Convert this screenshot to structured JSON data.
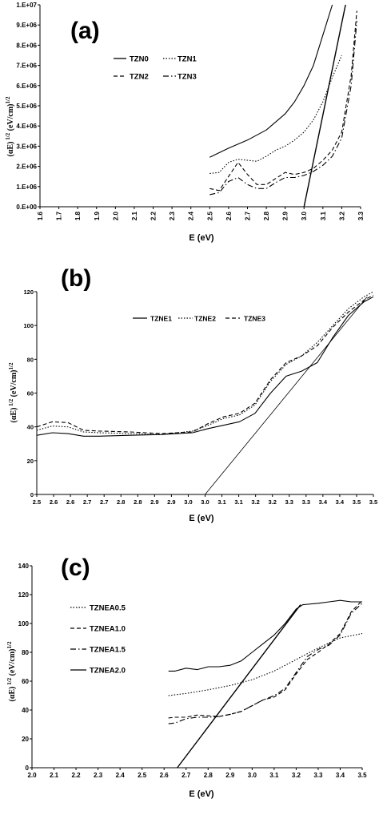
{
  "chart_data": [
    {
      "panel_label": "(a)",
      "type": "line",
      "xlabel": "E (eV)",
      "ylabel_main": "(αE)",
      "ylabel_sup": "1/2",
      "ylabel_unit": "(eV/cm)",
      "ylabel_unit_sup": "1/2",
      "xlim": [
        1.6,
        3.3
      ],
      "ylim": [
        0,
        10000000
      ],
      "x_ticks": [
        "1.6",
        "1.7",
        "1.8",
        "1.9",
        "2.0",
        "2.1",
        "2.2",
        "2.3",
        "2.4",
        "2.5",
        "2.6",
        "2.7",
        "2.8",
        "2.9",
        "3.0",
        "3.1",
        "3.2",
        "3.3"
      ],
      "y_ticks": [
        "0.E+00",
        "1.E+06",
        "2.E+06",
        "3.E+06",
        "4.E+06",
        "5.E+06",
        "6.E+06",
        "7.E+06",
        "8.E+06",
        "9.E+06",
        "1.E+07"
      ],
      "legend_position": "top-left",
      "series": [
        {
          "name": "TZN0",
          "style": "solid",
          "x": [
            2.5,
            2.6,
            2.7,
            2.8,
            2.9,
            2.95,
            3.0,
            3.05,
            3.1,
            3.15
          ],
          "y": [
            2450000,
            2900000,
            3300000,
            3800000,
            4600000,
            5200000,
            6000000,
            7000000,
            8500000,
            10000000
          ]
        },
        {
          "name": "TZN1",
          "style": "dotted",
          "x": [
            2.5,
            2.55,
            2.6,
            2.65,
            2.7,
            2.75,
            2.8,
            2.85,
            2.9,
            2.95,
            3.0,
            3.05,
            3.1,
            3.15,
            3.2
          ],
          "y": [
            1650000,
            1700000,
            2200000,
            2350000,
            2300000,
            2250000,
            2500000,
            2800000,
            3000000,
            3300000,
            3700000,
            4300000,
            5200000,
            6400000,
            7500000
          ]
        },
        {
          "name": "TZN2",
          "style": "dashed",
          "x": [
            2.5,
            2.55,
            2.6,
            2.65,
            2.7,
            2.75,
            2.8,
            2.85,
            2.9,
            2.95,
            3.0,
            3.05,
            3.1,
            3.15,
            3.2,
            3.25,
            3.28
          ],
          "y": [
            900000,
            800000,
            1500000,
            2200000,
            1600000,
            1100000,
            1100000,
            1400000,
            1700000,
            1600000,
            1700000,
            1900000,
            2300000,
            2800000,
            3700000,
            6500000,
            9700000
          ]
        },
        {
          "name": "TZN3",
          "style": "dashdot",
          "x": [
            2.5,
            2.55,
            2.6,
            2.65,
            2.7,
            2.75,
            2.8,
            2.85,
            2.9,
            2.95,
            3.0,
            3.05,
            3.1,
            3.15,
            3.2,
            3.25,
            3.28
          ],
          "y": [
            600000,
            700000,
            1250000,
            1450000,
            1100000,
            900000,
            900000,
            1200000,
            1450000,
            1450000,
            1550000,
            1750000,
            2050000,
            2500000,
            3400000,
            6000000,
            9200000
          ]
        }
      ],
      "fit_line": {
        "x": [
          3.0,
          3.22
        ],
        "y": [
          0,
          10000000
        ]
      }
    },
    {
      "panel_label": "(b)",
      "type": "line",
      "xlabel": "E (eV)",
      "ylabel_main": "(αE)",
      "ylabel_sup": "1/2",
      "ylabel_unit": "(eV/cm)",
      "ylabel_unit_sup": "1/2",
      "xlim": [
        2.5,
        3.58
      ],
      "ylim": [
        0,
        120
      ],
      "x_ticks": [
        "2.5",
        "2.6",
        "2.6",
        "2.7",
        "2.7",
        "2.8",
        "2.8",
        "2.9",
        "2.9",
        "3.0",
        "3.0",
        "3.1",
        "3.1",
        "3.2",
        "3.2",
        "3.3",
        "3.3",
        "3.4",
        "3.4",
        "3.5",
        "3.5"
      ],
      "y_ticks": [
        "0",
        "20",
        "40",
        "60",
        "80",
        "100",
        "120"
      ],
      "legend_position": "top-right",
      "series": [
        {
          "name": "TZNE1",
          "style": "solid",
          "x": [
            2.5,
            2.55,
            2.6,
            2.65,
            2.7,
            2.8,
            2.9,
            3.0,
            3.05,
            3.1,
            3.15,
            3.2,
            3.25,
            3.3,
            3.35,
            3.4,
            3.45,
            3.5,
            3.55,
            3.58
          ],
          "y": [
            35,
            36.5,
            36,
            34.5,
            34.5,
            35,
            35.5,
            36.5,
            39,
            41,
            43,
            48,
            60,
            70,
            73,
            78,
            93,
            106,
            114,
            117
          ]
        },
        {
          "name": "TZNE2",
          "style": "dotted",
          "x": [
            2.5,
            2.55,
            2.6,
            2.65,
            2.7,
            2.8,
            2.9,
            3.0,
            3.05,
            3.1,
            3.15,
            3.2,
            3.25,
            3.3,
            3.35,
            3.4,
            3.45,
            3.5,
            3.55,
            3.58
          ],
          "y": [
            38,
            40.5,
            40,
            37,
            36.5,
            36,
            35.5,
            37.5,
            41,
            45,
            47,
            53,
            67,
            77,
            82,
            90,
            100,
            110,
            117,
            120
          ]
        },
        {
          "name": "TZNE3",
          "style": "dashed",
          "x": [
            2.5,
            2.55,
            2.6,
            2.65,
            2.7,
            2.8,
            2.9,
            3.0,
            3.05,
            3.1,
            3.15,
            3.2,
            3.25,
            3.3,
            3.35,
            3.4,
            3.45,
            3.5,
            3.55,
            3.58
          ],
          "y": [
            40,
            43,
            42.5,
            38,
            37.5,
            37,
            36,
            37,
            42,
            46,
            48,
            54,
            68,
            78,
            82,
            88,
            99,
            108,
            115,
            118
          ]
        }
      ],
      "fit_line": {
        "x": [
          3.04,
          3.56
        ],
        "y": [
          0,
          117
        ]
      }
    },
    {
      "panel_label": "(c)",
      "type": "line",
      "xlabel": "E (eV)",
      "ylabel_main": "(αE)",
      "ylabel_sup": "1/2",
      "ylabel_unit": "(eV/cm)",
      "ylabel_unit_sup": "1/2",
      "xlim": [
        2.0,
        3.5
      ],
      "ylim": [
        0,
        140
      ],
      "x_ticks": [
        "2.0",
        "2.1",
        "2.2",
        "2.3",
        "2.4",
        "2.5",
        "2.6",
        "2.7",
        "2.8",
        "2.9",
        "3.0",
        "3.1",
        "3.2",
        "3.3",
        "3.4",
        "3.5"
      ],
      "y_ticks": [
        "0",
        "20",
        "40",
        "60",
        "80",
        "100",
        "120",
        "140"
      ],
      "legend_position": "left",
      "series": [
        {
          "name": "TZNEA0.5",
          "style": "dotted",
          "x": [
            2.62,
            2.7,
            2.8,
            2.9,
            3.0,
            3.1,
            3.2,
            3.3,
            3.4,
            3.5
          ],
          "y": [
            50,
            51.5,
            54,
            57,
            61,
            67,
            75,
            83,
            90,
            93
          ]
        },
        {
          "name": "TZNEA1.0",
          "style": "dashed",
          "x": [
            2.62,
            2.65,
            2.7,
            2.75,
            2.8,
            2.85,
            2.9,
            2.95,
            3.0,
            3.05,
            3.1,
            3.15,
            3.2,
            3.25,
            3.3,
            3.35,
            3.4,
            3.45,
            3.5
          ],
          "y": [
            34.5,
            35,
            35,
            36.5,
            36,
            35.5,
            37,
            39,
            43,
            47,
            49,
            54,
            65,
            75,
            80,
            86,
            93,
            108,
            116
          ]
        },
        {
          "name": "TZNEA1.5",
          "style": "dashdot",
          "x": [
            2.62,
            2.65,
            2.7,
            2.75,
            2.8,
            2.85,
            2.9,
            2.95,
            3.0,
            3.05,
            3.1,
            3.15,
            3.2,
            3.25,
            3.3,
            3.35,
            3.4,
            3.45,
            3.5
          ],
          "y": [
            30.5,
            31,
            34,
            35,
            35,
            35.5,
            37,
            39,
            43,
            47,
            50,
            55,
            66,
            77,
            82,
            85,
            92,
            107,
            114
          ]
        },
        {
          "name": "TZNEA2.0",
          "style": "solid",
          "x": [
            2.62,
            2.65,
            2.7,
            2.75,
            2.8,
            2.85,
            2.9,
            2.95,
            3.0,
            3.05,
            3.1,
            3.15,
            3.2,
            3.23,
            3.3,
            3.35,
            3.4,
            3.45,
            3.5
          ],
          "y": [
            67,
            67,
            69,
            68,
            70,
            70,
            71,
            74,
            80,
            86,
            92,
            100,
            110,
            113,
            114,
            115,
            116,
            115,
            115
          ]
        }
      ],
      "fit_line": {
        "x": [
          2.66,
          3.22
        ],
        "y": [
          0,
          113
        ]
      }
    }
  ]
}
